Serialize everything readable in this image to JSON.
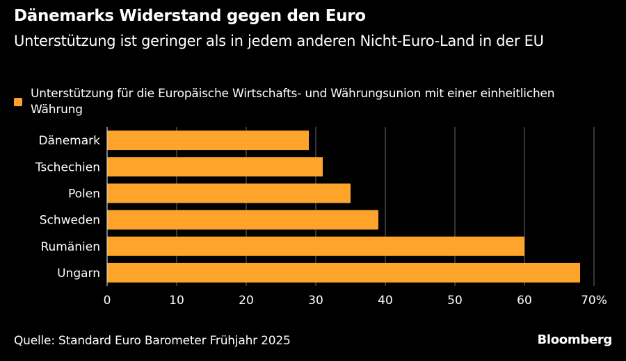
{
  "header": {
    "title": "Dänemarks Widerstand gegen den Euro",
    "subtitle": "Unterstützung ist geringer als in jedem anderen Nicht-Euro-Land in der EU"
  },
  "footer": {
    "source": "Quelle: Standard Euro Barometer Frühjahr 2025",
    "brand": "Bloomberg"
  },
  "colors": {
    "bar": "#ffa42b",
    "grid": "#5a5a5a",
    "background": "#000000",
    "text": "#ffffff"
  },
  "chart_data": {
    "type": "bar",
    "orientation": "horizontal",
    "title": "Dänemarks Widerstand gegen den Euro",
    "subtitle": "Unterstützung ist geringer als in jedem anderen Nicht-Euro-Land in der EU",
    "legend": {
      "position": "top-left",
      "entries": [
        "Unterstützung für die Europäische Wirtschafts- und Währungsunion mit einer einheitlichen Währung"
      ]
    },
    "categories": [
      "Dänemark",
      "Tschechien",
      "Polen",
      "Schweden",
      "Rumänien",
      "Ungarn"
    ],
    "series": [
      {
        "name": "Unterstützung für die Europäische Wirtschafts- und Währungsunion mit einer einheitlichen Währung",
        "values": [
          29,
          31,
          35,
          39,
          60,
          68
        ]
      }
    ],
    "xlabel": "",
    "ylabel": "",
    "xlim": [
      0,
      70
    ],
    "xticks": [
      0,
      10,
      20,
      30,
      40,
      50,
      60,
      70
    ],
    "xtick_labels": [
      "0",
      "10",
      "20",
      "30",
      "40",
      "50",
      "60",
      "70%"
    ],
    "grid": true,
    "unit": "%"
  }
}
